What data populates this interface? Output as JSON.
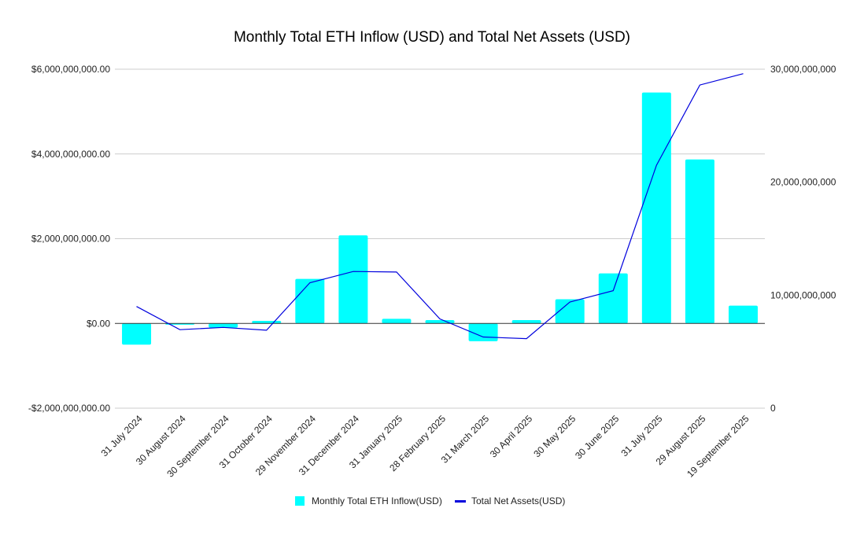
{
  "chart_data": {
    "type": "bar",
    "title": "Monthly Total ETH Inflow (USD) and Total Net Assets (USD)",
    "xlabel": "",
    "ylabel": "",
    "categories": [
      "31 July 2024",
      "30 August 2024",
      "30 September 2024",
      "31 October 2024",
      "29 November 2024",
      "31 December 2024",
      "31 January 2025",
      "28 February 2025",
      "31 March 2025",
      "30 April 2025",
      "30 May 2025",
      "30 June 2025",
      "31 July 2025",
      "29 August 2025",
      "19 September 2025"
    ],
    "series": [
      {
        "name": "Monthly Total ETH Inflow(USD)",
        "type": "bar",
        "axis": "left",
        "color": "#00ffff",
        "values": [
          -500000000,
          -30000000,
          -100000000,
          60000000,
          1050000000,
          2080000000,
          110000000,
          80000000,
          -420000000,
          80000000,
          570000000,
          1180000000,
          5450000000,
          3870000000,
          420000000
        ]
      },
      {
        "name": "Total Net Assets(USD)",
        "type": "line",
        "axis": "right",
        "color": "#0000dd",
        "values": [
          9000000000,
          6950000000,
          7150000000,
          6900000000,
          11100000000,
          12100000000,
          12050000000,
          7900000000,
          6300000000,
          6150000000,
          9400000000,
          10400000000,
          21500000000,
          28600000000,
          29600000000
        ]
      }
    ],
    "y_left": {
      "ylim": [
        -2000000000,
        6000000000
      ],
      "ticks": [
        6000000000,
        4000000000,
        2000000000,
        0,
        -2000000000
      ],
      "tick_labels": [
        "$6,000,000,000.00",
        "$4,000,000,000.00",
        "$2,000,000,000.00",
        "$0.00",
        "-$2,000,000,000.00"
      ]
    },
    "y_right": {
      "ylim": [
        0,
        30000000000
      ],
      "ticks": [
        30000000000,
        20000000000,
        10000000000,
        0
      ],
      "tick_labels": [
        "30,000,000,000",
        "20,000,000,000",
        "10,000,000,000",
        "0"
      ]
    },
    "grid": true,
    "legend_position": "bottom-center"
  }
}
